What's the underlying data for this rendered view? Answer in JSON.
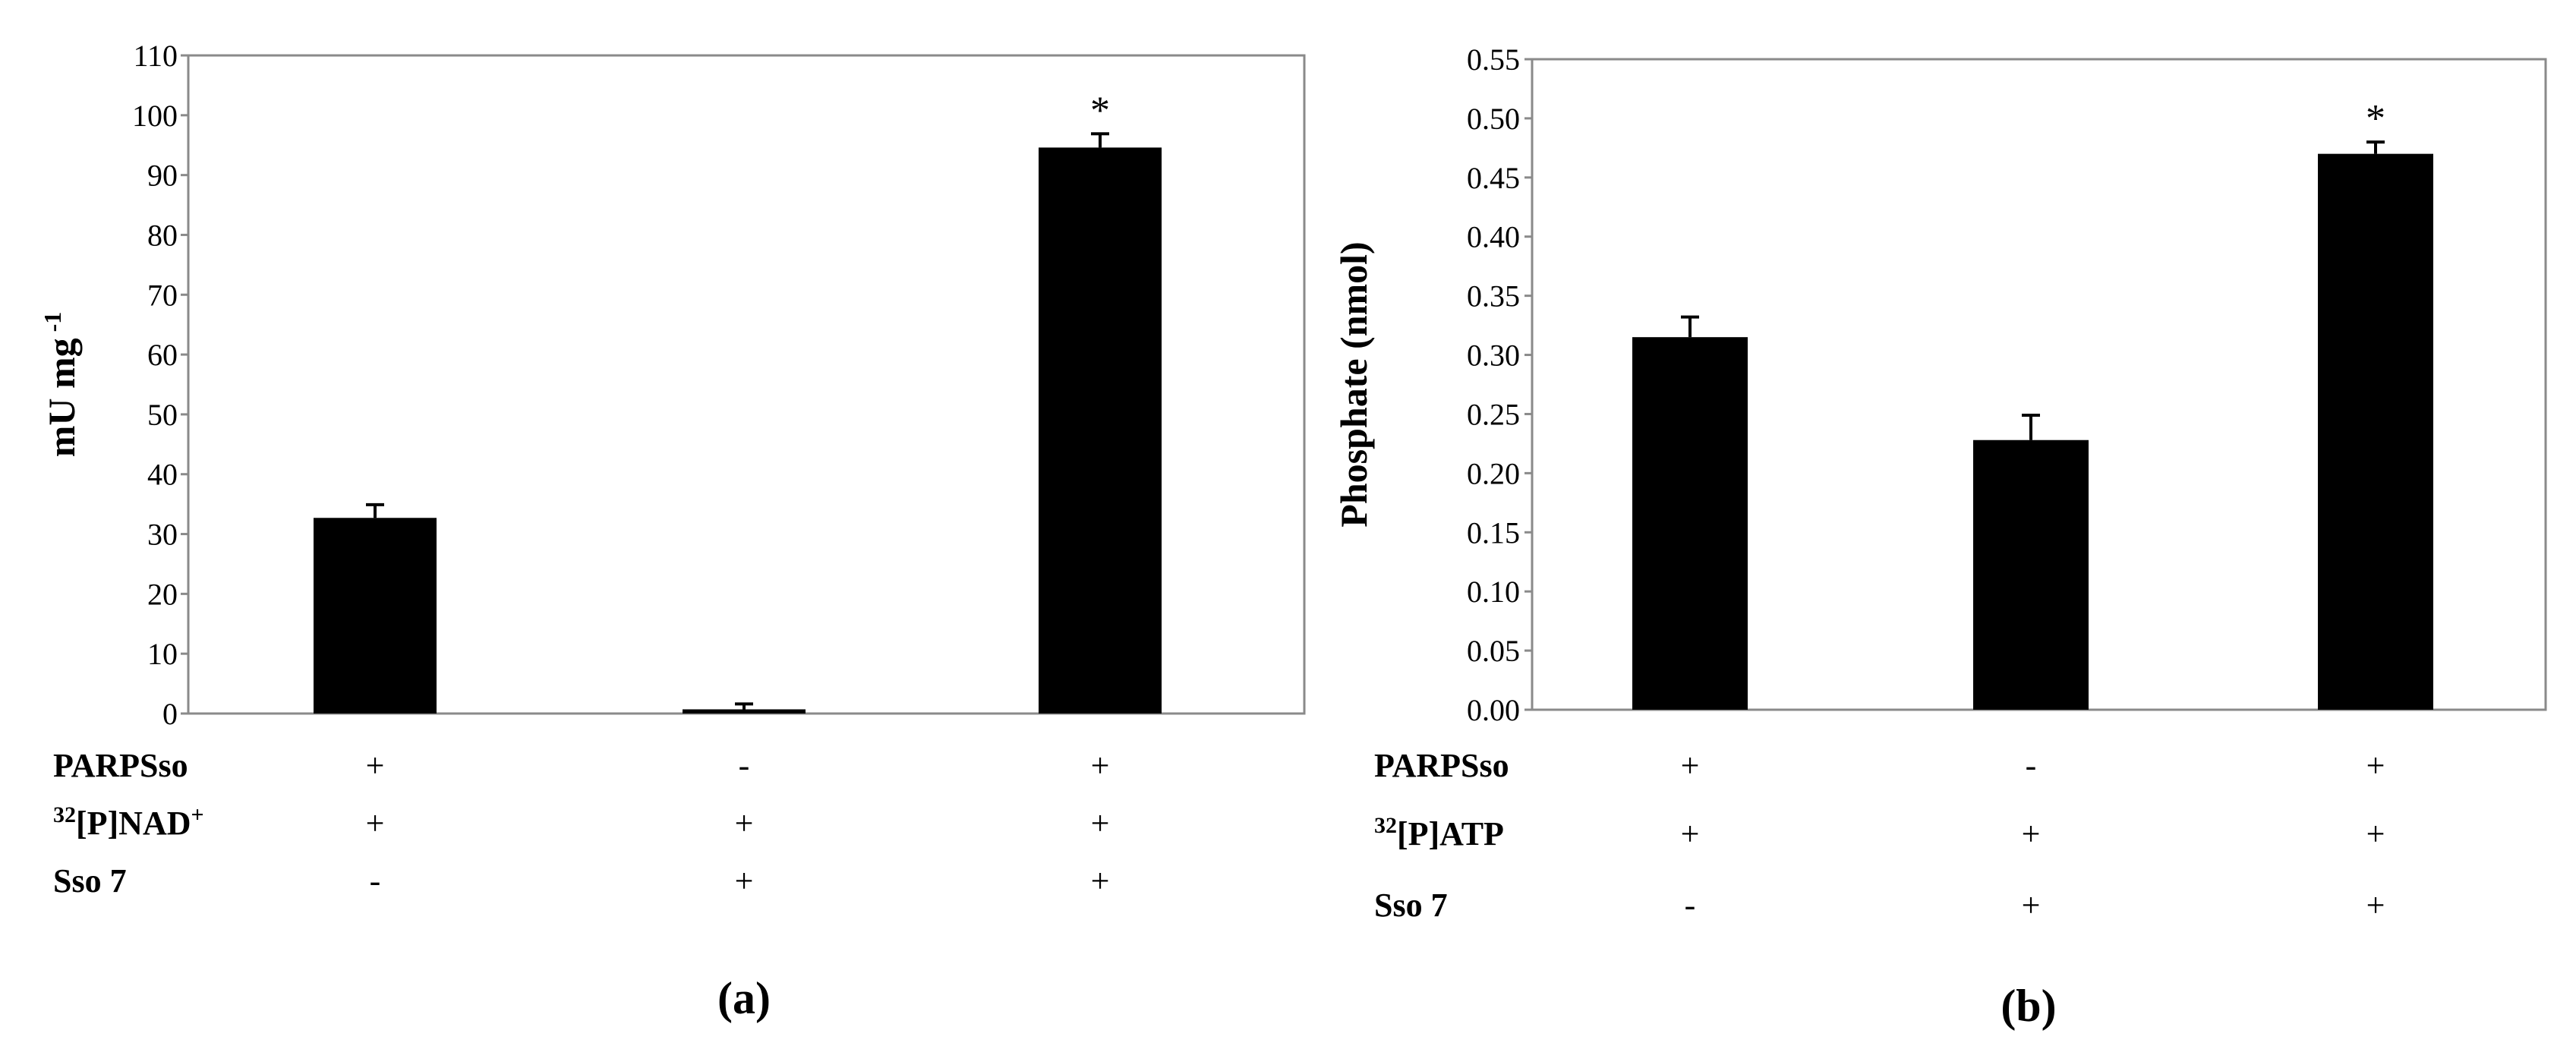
{
  "chart_data": [
    {
      "type": "bar",
      "panel_label": "(a)",
      "ylabel": "mU mg",
      "ylabel_sup": "-1",
      "ylim": [
        0,
        110
      ],
      "yticks": [
        "0",
        "10",
        "20",
        "30",
        "40",
        "50",
        "60",
        "70",
        "80",
        "90",
        "100",
        "110"
      ],
      "ytick_values": [
        0,
        10,
        20,
        30,
        40,
        50,
        60,
        70,
        80,
        90,
        100,
        110
      ],
      "values": [
        32.7,
        0.7,
        94.6
      ],
      "errors": [
        2.2,
        0.9,
        2.3
      ],
      "annotations": [
        "",
        "",
        "*"
      ],
      "conditions": [
        {
          "label": "PARPSso",
          "label_sup": "",
          "marks": [
            "+",
            "-",
            "+"
          ]
        },
        {
          "label": "[P]NAD",
          "label_sup": "+",
          "label_pre": "32",
          "marks": [
            "+",
            "+",
            "+"
          ]
        },
        {
          "label": "Sso 7",
          "label_sup": "",
          "marks": [
            "-",
            "+",
            "+"
          ]
        }
      ]
    },
    {
      "type": "bar",
      "panel_label": "(b)",
      "ylabel": "Phosphate (nmol)",
      "ylabel_sup": "",
      "ylim": [
        0,
        0.55
      ],
      "yticks": [
        "0.00",
        "0.05",
        "0.10",
        "0.15",
        "0.20",
        "0.25",
        "0.30",
        "0.35",
        "0.40",
        "0.45",
        "0.50",
        "0.55"
      ],
      "ytick_values": [
        0,
        0.05,
        0.1,
        0.15,
        0.2,
        0.25,
        0.3,
        0.35,
        0.4,
        0.45,
        0.5,
        0.55
      ],
      "values": [
        0.315,
        0.228,
        0.47
      ],
      "errors": [
        0.017,
        0.021,
        0.01
      ],
      "annotations": [
        "",
        "",
        "*"
      ],
      "conditions": [
        {
          "label": "PARPSso",
          "label_sup": "",
          "marks": [
            "+",
            "-",
            "+"
          ]
        },
        {
          "label": "[P]ATP",
          "label_sup": "",
          "label_pre": "32",
          "marks": [
            "+",
            "+",
            "+"
          ]
        },
        {
          "label": "Sso 7",
          "label_sup": "",
          "marks": [
            "-",
            "+",
            "+"
          ]
        }
      ]
    }
  ]
}
